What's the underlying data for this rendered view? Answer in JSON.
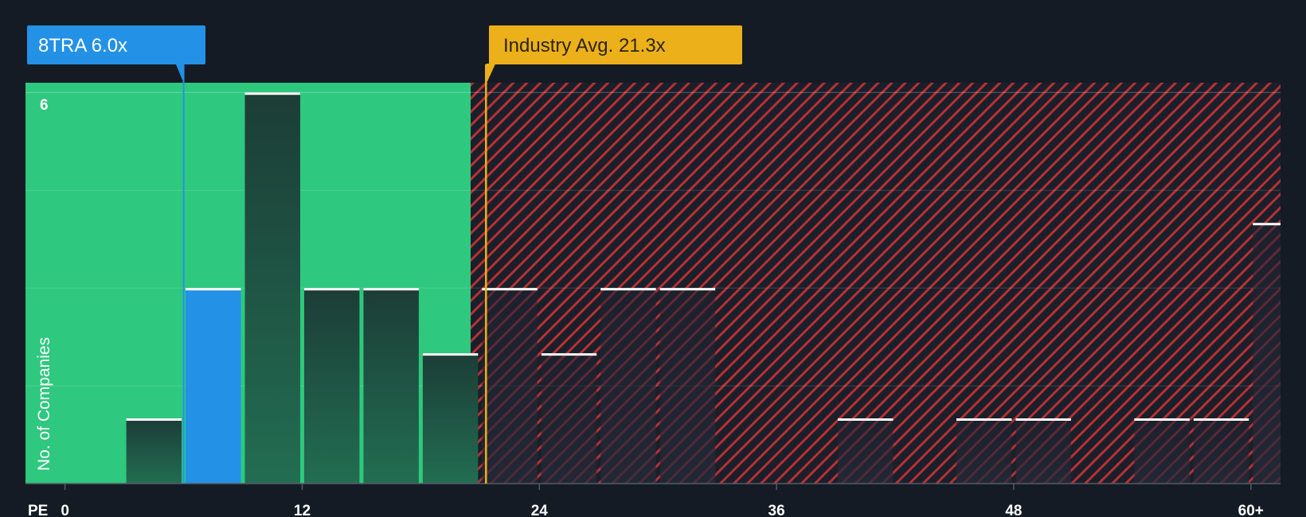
{
  "chart_data": {
    "type": "bar",
    "title": "",
    "xlabel": "PE",
    "ylabel": "No. of Companies",
    "x_ticks": [
      "0",
      "12",
      "24",
      "36",
      "48",
      "60+"
    ],
    "x_tick_values": [
      0,
      12,
      24,
      36,
      48,
      60
    ],
    "y_ticks": [
      "6"
    ],
    "y_tick_values": [
      6
    ],
    "xlim": [
      -2,
      61.5
    ],
    "ylim": [
      0,
      6.15
    ],
    "bin_width": 3,
    "bars": [
      {
        "start": 3,
        "value": 1
      },
      {
        "start": 6,
        "value": 3,
        "highlight": true
      },
      {
        "start": 9,
        "value": 6
      },
      {
        "start": 12,
        "value": 3
      },
      {
        "start": 15,
        "value": 3
      },
      {
        "start": 18,
        "value": 2
      },
      {
        "start": 21,
        "value": 3
      },
      {
        "start": 24,
        "value": 2
      },
      {
        "start": 27,
        "value": 3
      },
      {
        "start": 30,
        "value": 3
      },
      {
        "start": 39,
        "value": 1
      },
      {
        "start": 45,
        "value": 1
      },
      {
        "start": 48,
        "value": 1
      },
      {
        "start": 54,
        "value": 1
      },
      {
        "start": 57,
        "value": 1
      },
      {
        "start": 60,
        "value": 4,
        "partial": true
      }
    ],
    "company": {
      "label": "8TRA 6.0x",
      "value": 6.0
    },
    "industry_avg": {
      "label": "Industry Avg. 21.3x",
      "value": 21.3
    },
    "colors": {
      "background": "#151b24",
      "good_zone": "#2ec87e",
      "bad_zone_stripe": "#b83036",
      "company": "#2391e6",
      "industry": "#ecb11a",
      "bar_dark_top": "#1c3d36",
      "bar_dark_bottom": "#226d52"
    }
  }
}
